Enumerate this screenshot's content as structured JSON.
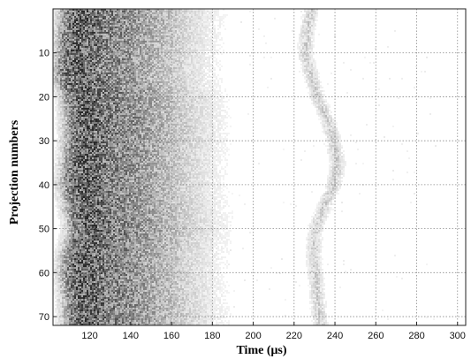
{
  "chart_data": {
    "type": "heatmap",
    "title": "",
    "xlabel": "Time (μs)",
    "ylabel": "Projection numbers",
    "xlim": [
      102,
      304
    ],
    "ylim": [
      0,
      72
    ],
    "y_inverted": true,
    "x_ticks": [
      120,
      140,
      160,
      180,
      200,
      220,
      240,
      260,
      280,
      300
    ],
    "y_ticks": [
      10,
      20,
      30,
      40,
      50,
      60,
      70
    ],
    "grid": true,
    "colormap": "gray-inverted",
    "colors": {
      "background": "#ffffff",
      "frame": "#222222",
      "grid": "#8c8c8c",
      "cell_dark": "#2a2a2a"
    },
    "series": [
      {
        "description": "main arrival band",
        "profile": [
          [
            0,
            116
          ],
          [
            5,
            115
          ],
          [
            10,
            114
          ],
          [
            15,
            113
          ],
          [
            20,
            117
          ],
          [
            25,
            118
          ],
          [
            30,
            118
          ],
          [
            35,
            117
          ],
          [
            40,
            116
          ],
          [
            45,
            118
          ],
          [
            50,
            120
          ],
          [
            55,
            117
          ],
          [
            60,
            116
          ],
          [
            65,
            117
          ],
          [
            70,
            118
          ],
          [
            72,
            117
          ]
        ],
        "intensity_by_time": [
          [
            102,
            0.0
          ],
          [
            106,
            0.25
          ],
          [
            110,
            0.7
          ],
          [
            114,
            0.92
          ],
          [
            118,
            1.0
          ],
          [
            122,
            0.95
          ],
          [
            130,
            0.8
          ],
          [
            140,
            0.7
          ],
          [
            150,
            0.55
          ],
          [
            160,
            0.4
          ],
          [
            170,
            0.24
          ],
          [
            180,
            0.12
          ],
          [
            190,
            0.04
          ],
          [
            200,
            0.0
          ]
        ]
      },
      {
        "description": "secondary echo band",
        "profile": [
          [
            0,
            228
          ],
          [
            5,
            226
          ],
          [
            10,
            225
          ],
          [
            15,
            228
          ],
          [
            20,
            231
          ],
          [
            25,
            236
          ],
          [
            30,
            239
          ],
          [
            35,
            241
          ],
          [
            40,
            239
          ],
          [
            45,
            234
          ],
          [
            50,
            230
          ],
          [
            55,
            229
          ],
          [
            60,
            230
          ],
          [
            65,
            231
          ],
          [
            70,
            232
          ],
          [
            72,
            233
          ]
        ],
        "peak_intensity": 0.3,
        "width": 5
      }
    ]
  }
}
